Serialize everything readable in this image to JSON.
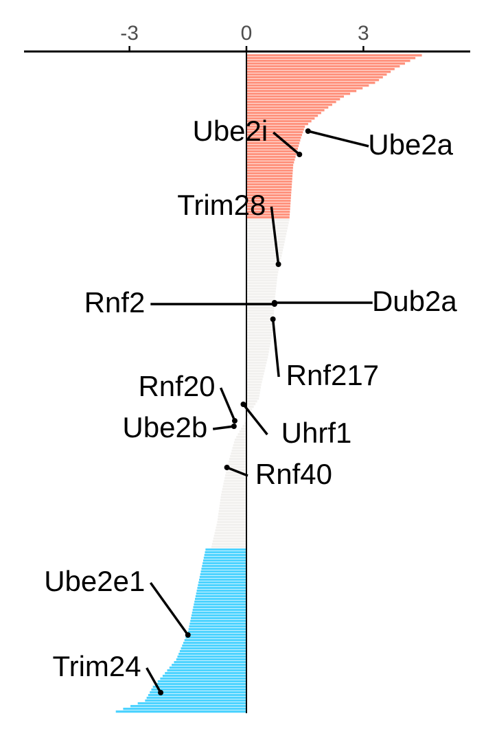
{
  "chart_data": {
    "type": "bar",
    "orientation": "horizontal-ranked",
    "title": "",
    "xlabel": "",
    "ylabel": "",
    "xlim": [
      -3.9,
      5.5
    ],
    "x_ticks": [
      -3,
      0,
      3
    ],
    "x_tick_labels": [
      "-3",
      "0",
      "3"
    ],
    "axis_position": "top",
    "grid": false,
    "legend": "none",
    "colors": {
      "positive_significant": "#ff937e",
      "not_significant": "#f2f1ef",
      "negative_significant": "#4dd3ff",
      "axis": "#000000",
      "tick_label": "#4d4d4d",
      "annotation": "#000000"
    },
    "n_genes": 240,
    "thresholds": {
      "positive_significant_count": 60,
      "negative_significant_count": 60
    },
    "value_profile": {
      "ranks": [
        0,
        0.5,
        2,
        5,
        10,
        15,
        20,
        26,
        30,
        35,
        40,
        50,
        60,
        70,
        80,
        90,
        100,
        110,
        120,
        125,
        130,
        135,
        140,
        150,
        160,
        170,
        179,
        180,
        190,
        200,
        210,
        220,
        226,
        230,
        235,
        239
      ],
      "values": [
        4.5,
        4.4,
        4.2,
        3.8,
        3.3,
        2.5,
        2.0,
        1.5,
        1.4,
        1.3,
        1.2,
        1.15,
        1.1,
        0.95,
        0.8,
        0.72,
        0.68,
        0.55,
        0.38,
        0.32,
        0.1,
        -0.1,
        -0.3,
        -0.5,
        -0.65,
        -0.75,
        -0.9,
        -1.05,
        -1.2,
        -1.35,
        -1.5,
        -1.8,
        -2.15,
        -2.4,
        -2.6,
        -3.35
      ]
    },
    "highlighted_genes": [
      {
        "name": "Ube2a",
        "rank": 27.5,
        "value": 1.58,
        "label_side": "right",
        "label_x": 5.3,
        "label_y_rank": 36
      },
      {
        "name": "Ube2i",
        "rank": 36,
        "value": 1.36,
        "label_side": "left",
        "label_x": 0.55,
        "label_y_rank": 31
      },
      {
        "name": "Trim28",
        "rank": 76,
        "value": 0.82,
        "label_side": "left",
        "label_x": 0.5,
        "label_y_rank": 58
      },
      {
        "name": "Dub2a",
        "rank": 90,
        "value": 0.72,
        "label_side": "right",
        "label_x": 5.4,
        "label_y_rank": 93
      },
      {
        "name": "Rnf2",
        "rank": 90.5,
        "value": 0.72,
        "label_side": "left",
        "label_x": -2.6,
        "label_y_rank": 93.5
      },
      {
        "name": "Rnf217",
        "rank": 96,
        "value": 0.68,
        "label_side": "right",
        "label_x": 3.4,
        "label_y_rank": 120
      },
      {
        "name": "Uhrf1",
        "rank": 127,
        "value": -0.08,
        "label_side": "right",
        "label_x": 2.7,
        "label_y_rank": 141
      },
      {
        "name": "Rnf20",
        "rank": 133,
        "value": -0.3,
        "label_side": "left",
        "label_x": -0.8,
        "label_y_rank": 124
      },
      {
        "name": "Ube2b",
        "rank": 135,
        "value": -0.32,
        "label_side": "left",
        "label_x": -1.0,
        "label_y_rank": 139
      },
      {
        "name": "Rnf40",
        "rank": 150,
        "value": -0.5,
        "label_side": "right",
        "label_x": 2.2,
        "label_y_rank": 156
      },
      {
        "name": "Ube2e1",
        "rank": 211,
        "value": -1.5,
        "label_side": "left",
        "label_x": -2.6,
        "label_y_rank": 195
      },
      {
        "name": "Trim24",
        "rank": 232,
        "value": -2.2,
        "label_side": "left",
        "label_x": -2.7,
        "label_y_rank": 226
      }
    ]
  }
}
